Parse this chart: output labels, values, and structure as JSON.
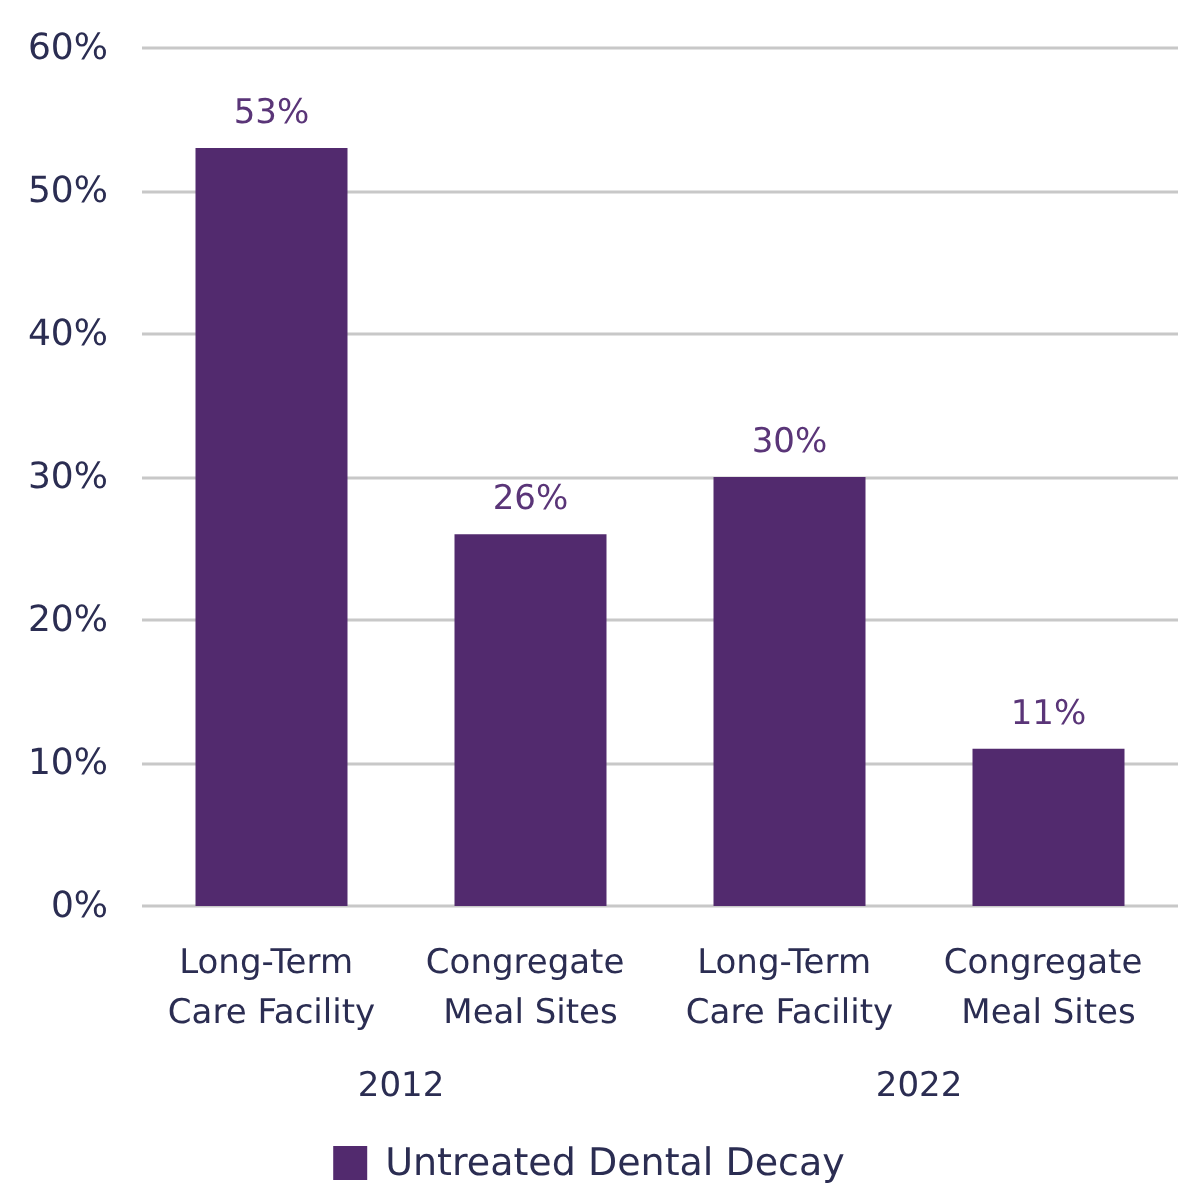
{
  "chart_data": {
    "type": "bar",
    "categories": [
      "Long-Term Care Facility",
      "Congregate Meal Sites",
      "Long-Term Care Facility",
      "Congregate Meal Sites"
    ],
    "series": [
      {
        "name": "Untreated Dental Decay",
        "color": "#522a6e",
        "values": [
          53,
          26,
          30,
          11
        ],
        "value_labels": [
          "53%",
          "26%",
          "30%",
          "11%"
        ]
      }
    ],
    "ylim": [
      0,
      60
    ],
    "yticks": [
      {
        "value": 0,
        "label": "0%"
      },
      {
        "value": 10,
        "label": "10%"
      },
      {
        "value": 20,
        "label": "20%"
      },
      {
        "value": 30,
        "label": "30%"
      },
      {
        "value": 40,
        "label": "40%"
      },
      {
        "value": 50,
        "label": "50%"
      },
      {
        "value": 60,
        "label": "60%"
      }
    ],
    "grid": "y",
    "legend": "bottom",
    "annotations": [
      "2012",
      "2022"
    ]
  }
}
